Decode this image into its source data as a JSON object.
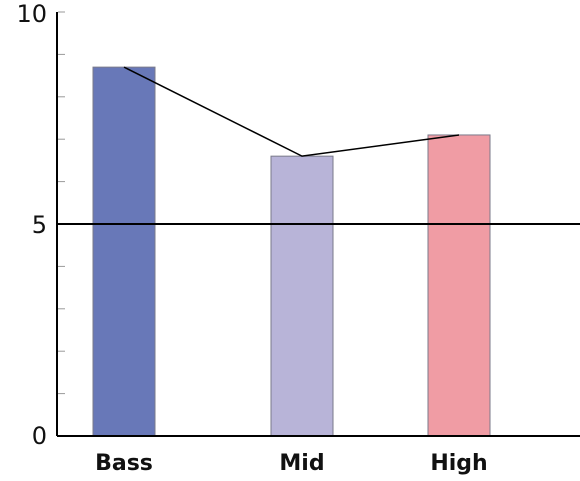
{
  "chart_data": {
    "type": "bar",
    "categories": [
      "Bass",
      "Mid",
      "High"
    ],
    "values": [
      8.7,
      6.6,
      7.1
    ],
    "colors": [
      "#6878b8",
      "#b8b4d8",
      "#f09ca4"
    ],
    "ylim": [
      0,
      10
    ],
    "yticks": [
      0,
      5,
      10
    ],
    "reference_line": 5,
    "connector_line": true,
    "title": "",
    "xlabel": "",
    "ylabel": ""
  }
}
